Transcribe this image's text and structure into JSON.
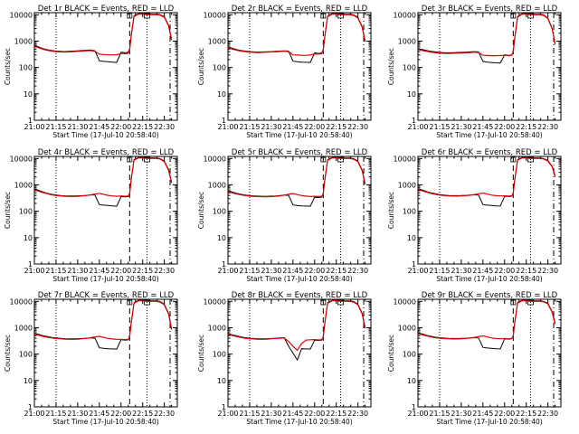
{
  "chart_data": {
    "type": "line",
    "shared": {
      "xlabel": "Start Time (17-Jul-10 20:58:40)",
      "ylabel": "Counts/sec",
      "x_tick_values": [
        0,
        15,
        30,
        45,
        60,
        75,
        90
      ],
      "x_tick_labels": [
        "21:00",
        "21:15",
        "21:30",
        "21:45",
        "22:00",
        "22:15",
        "22:30"
      ],
      "xlim": [
        0,
        99
      ],
      "y_scale": "log",
      "ylim": [
        1,
        12000
      ],
      "y_tick_values": [
        1,
        10,
        100,
        1000,
        10000
      ],
      "y_tick_labels": [
        "1",
        "10",
        "100",
        "1000",
        "10000"
      ],
      "series_colors": {
        "events": "#000000",
        "lld": "#e00000"
      },
      "vlines": [
        {
          "x": 15,
          "style": "dotted"
        },
        {
          "x": 66,
          "style": "dashed"
        },
        {
          "x": 78,
          "style": "dotted"
        },
        {
          "x": 94,
          "style": "dashdot"
        }
      ],
      "x": [
        0,
        3,
        6,
        9,
        12,
        15,
        18,
        21,
        24,
        27,
        30,
        33,
        36,
        39,
        42,
        45,
        48,
        51,
        54,
        57,
        60,
        63,
        65,
        66,
        67,
        69,
        72,
        75,
        78,
        81,
        84,
        87,
        90,
        93,
        95
      ]
    },
    "panels": [
      {
        "title": "Det 1r BLACK = Events, RED = LLD",
        "series": [
          {
            "key": "events",
            "values": [
              700,
              600,
              520,
              470,
              440,
              420,
              410,
              400,
              410,
              420,
              430,
              440,
              450,
              460,
              430,
              180,
              170,
              165,
              160,
              155,
              380,
              360,
              380,
              500,
              1500,
              9000,
              11000,
              11000,
              10500,
              10500,
              10500,
              10200,
              8500,
              4000,
              1200
            ]
          },
          {
            "key": "lld",
            "values": [
              650,
              560,
              490,
              450,
              420,
              400,
              390,
              380,
              390,
              400,
              410,
              420,
              430,
              440,
              410,
              320,
              310,
              300,
              300,
              305,
              340,
              330,
              350,
              480,
              1400,
              8500,
              10500,
              10500,
              10000,
              10000,
              10000,
              9800,
              8000,
              3800,
              1100
            ]
          }
        ]
      },
      {
        "title": "Det 2r BLACK = Events, RED = LLD",
        "series": [
          {
            "key": "events",
            "values": [
              600,
              540,
              480,
              440,
              420,
              400,
              390,
              385,
              390,
              395,
              400,
              410,
              420,
              430,
              420,
              175,
              165,
              160,
              158,
              155,
              360,
              340,
              360,
              480,
              1400,
              8800,
              11000,
              11000,
              10500,
              10500,
              10500,
              10000,
              8000,
              3500,
              1000
            ]
          },
          {
            "key": "lld",
            "values": [
              560,
              500,
              450,
              420,
              400,
              385,
              375,
              370,
              375,
              380,
              390,
              395,
              405,
              415,
              400,
              300,
              295,
              290,
              290,
              295,
              330,
              320,
              340,
              460,
              1350,
              8400,
              10500,
              10500,
              10000,
              10000,
              10000,
              9500,
              7600,
              3300,
              950
            ]
          }
        ]
      },
      {
        "title": "Det 3r BLACK = Events, RED = LLD",
        "series": [
          {
            "key": "events",
            "values": [
              520,
              480,
              440,
              410,
              390,
              375,
              365,
              360,
              365,
              370,
              375,
              380,
              390,
              400,
              390,
              170,
              160,
              155,
              150,
              148,
              300,
              290,
              300,
              420,
              1300,
              8500,
              11000,
              11000,
              10500,
              10500,
              10500,
              10000,
              7500,
              3000,
              800
            ]
          },
          {
            "key": "lld",
            "values": [
              480,
              440,
              410,
              385,
              365,
              350,
              345,
              340,
              345,
              350,
              355,
              360,
              370,
              380,
              370,
              290,
              285,
              280,
              280,
              285,
              290,
              280,
              290,
              400,
              1250,
              8100,
              10500,
              10500,
              10000,
              10000,
              10000,
              9500,
              7200,
              2900,
              750
            ]
          }
        ]
      },
      {
        "title": "Det 4r BLACK = Events, RED = LLD",
        "series": [
          {
            "key": "events",
            "values": [
              700,
              620,
              540,
              480,
              440,
              410,
              395,
              385,
              380,
              380,
              385,
              390,
              400,
              420,
              410,
              180,
              170,
              165,
              160,
              155,
              360,
              350,
              360,
              480,
              1500,
              9000,
              11000,
              11000,
              10500,
              10500,
              10500,
              10000,
              8000,
              3800,
              1300
            ]
          },
          {
            "key": "lld",
            "values": [
              650,
              580,
              510,
              460,
              420,
              395,
              380,
              370,
              365,
              365,
              370,
              380,
              395,
              420,
              450,
              480,
              440,
              400,
              380,
              370,
              380,
              370,
              380,
              470,
              1450,
              8600,
              10500,
              10500,
              10000,
              10000,
              10000,
              9600,
              7600,
              3600,
              1200
            ]
          }
        ]
      },
      {
        "title": "Det 5r BLACK = Events, RED = LLD",
        "series": [
          {
            "key": "events",
            "values": [
              600,
              540,
              480,
              440,
              410,
              390,
              380,
              375,
              370,
              370,
              375,
              380,
              395,
              410,
              400,
              175,
              165,
              160,
              158,
              155,
              340,
              330,
              345,
              470,
              1450,
              8800,
              11000,
              11000,
              10500,
              10500,
              10500,
              10000,
              8000,
              3600,
              1100
            ]
          },
          {
            "key": "lld",
            "values": [
              560,
              500,
              450,
              420,
              395,
              375,
              365,
              360,
              355,
              355,
              360,
              370,
              385,
              410,
              440,
              470,
              430,
              395,
              375,
              365,
              370,
              360,
              370,
              460,
              1400,
              8400,
              10500,
              10500,
              10000,
              10000,
              10000,
              9500,
              7600,
              3400,
              1050
            ]
          }
        ]
      },
      {
        "title": "Det 6r BLACK = Events, RED = LLD",
        "series": [
          {
            "key": "events",
            "values": [
              720,
              640,
              560,
              500,
              460,
              430,
              410,
              395,
              390,
              390,
              395,
              400,
              410,
              420,
              410,
              180,
              170,
              165,
              160,
              158,
              370,
              360,
              370,
              490,
              1500,
              9000,
              11000,
              11000,
              10500,
              10500,
              10500,
              10000,
              8500,
              5000,
              2200
            ]
          },
          {
            "key": "lld",
            "values": [
              670,
              600,
              530,
              475,
              440,
              410,
              395,
              380,
              375,
              375,
              380,
              390,
              405,
              430,
              460,
              490,
              450,
              410,
              390,
              380,
              385,
              375,
              385,
              475,
              1450,
              8600,
              10500,
              10500,
              10000,
              10000,
              10000,
              9600,
              8000,
              4800,
              2000
            ]
          }
        ]
      },
      {
        "title": "Det 7r BLACK = Events, RED = LLD",
        "series": [
          {
            "key": "events",
            "values": [
              620,
              560,
              500,
              460,
              430,
              410,
              395,
              385,
              380,
              380,
              385,
              390,
              400,
              410,
              400,
              175,
              165,
              160,
              158,
              155,
              350,
              340,
              350,
              470,
              1400,
              8800,
              11000,
              11000,
              10500,
              10500,
              10500,
              10000,
              7800,
              3500,
              900
            ]
          },
          {
            "key": "lld",
            "values": [
              580,
              520,
              470,
              435,
              410,
              390,
              380,
              370,
              365,
              365,
              370,
              380,
              395,
              420,
              450,
              470,
              430,
              395,
              375,
              365,
              365,
              355,
              365,
              460,
              1350,
              8400,
              10500,
              10500,
              10000,
              10000,
              10000,
              9500,
              7400,
              3300,
              850
            ]
          }
        ]
      },
      {
        "title": "Det 8r BLACK = Events, RED = LLD",
        "series": [
          {
            "key": "events",
            "values": [
              600,
              540,
              490,
              450,
              420,
              400,
              390,
              380,
              380,
              385,
              390,
              400,
              410,
              420,
              200,
              110,
              60,
              160,
              158,
              155,
              340,
              330,
              340,
              460,
              1400,
              8800,
              11000,
              11000,
              10500,
              10500,
              10500,
              10000,
              7800,
              3500,
              1000
            ]
          },
          {
            "key": "lld",
            "values": [
              560,
              505,
              460,
              425,
              400,
              385,
              375,
              365,
              365,
              370,
              380,
              390,
              400,
              410,
              300,
              200,
              140,
              250,
              340,
              350,
              355,
              345,
              355,
              450,
              1350,
              8400,
              10500,
              10500,
              10000,
              10000,
              10000,
              9500,
              7400,
              3300,
              950
            ]
          }
        ]
      },
      {
        "title": "Det 9r BLACK = Events, RED = LLD",
        "series": [
          {
            "key": "events",
            "values": [
              640,
              580,
              520,
              470,
              440,
              420,
              405,
              395,
              390,
              390,
              395,
              400,
              410,
              420,
              410,
              180,
              170,
              165,
              160,
              158,
              380,
              370,
              380,
              500,
              1500,
              9000,
              11000,
              11000,
              10500,
              10500,
              10500,
              10000,
              8500,
              4000,
              1500
            ]
          },
          {
            "key": "lld",
            "values": [
              600,
              540,
              490,
              445,
              420,
              400,
              390,
              380,
              375,
              375,
              380,
              390,
              405,
              430,
              460,
              490,
              450,
              410,
              390,
              380,
              390,
              380,
              390,
              480,
              1450,
              8600,
              10500,
              10500,
              10000,
              10000,
              10000,
              9600,
              8000,
              3800,
              1400
            ]
          }
        ]
      }
    ]
  }
}
